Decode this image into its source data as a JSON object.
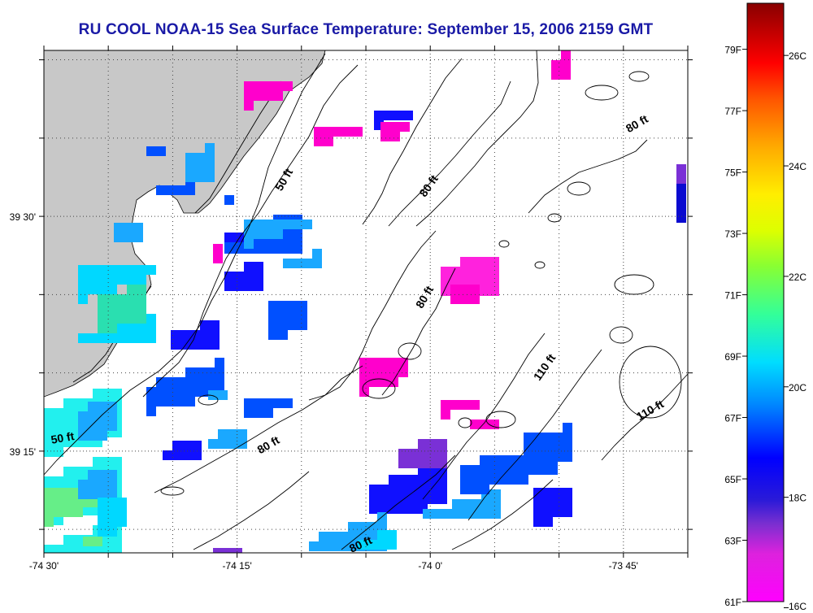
{
  "title": "RU COOL  NOAA-15  Sea Surface Temperature:  September 15, 2006 2159 GMT",
  "map": {
    "lon_range": [
      -74.5,
      -73.6667
    ],
    "lat_range": [
      39.1417,
      39.6767
    ],
    "x_ticks": [
      {
        "lon": -74.5,
        "label": "-74 30'"
      },
      {
        "lon": -74.25,
        "label": "-74 15'"
      },
      {
        "lon": -74.0,
        "label": "-74 0'"
      },
      {
        "lon": -73.75,
        "label": "-73 45'"
      }
    ],
    "y_ticks": [
      {
        "lat": 39.5,
        "label": "39 30'"
      },
      {
        "lat": 39.25,
        "label": "39 15'"
      }
    ],
    "colors": {
      "land": "#c8c8c8",
      "title": "#1a1aa6",
      "grid": "#444444"
    },
    "depth_labels": [
      {
        "text": "50 ft",
        "lon": -74.185,
        "lat": 39.537,
        "angle": -60
      },
      {
        "text": "80 ft",
        "lon": -73.998,
        "lat": 39.53,
        "angle": -55
      },
      {
        "text": "80 ft",
        "lon": -73.73,
        "lat": 39.595,
        "angle": -30
      },
      {
        "text": "80 ft",
        "lon": -74.003,
        "lat": 39.412,
        "angle": -60
      },
      {
        "text": "110 ft",
        "lon": -73.848,
        "lat": 39.337,
        "angle": -55
      },
      {
        "text": "110 ft",
        "lon": -73.713,
        "lat": 39.29,
        "angle": -30
      },
      {
        "text": "80 ft",
        "lon": -74.207,
        "lat": 39.253,
        "angle": -30
      },
      {
        "text": "50 ft",
        "lon": -74.475,
        "lat": 39.26,
        "angle": -10
      },
      {
        "text": "80 ft",
        "lon": -74.088,
        "lat": 39.147,
        "angle": -25
      }
    ]
  },
  "colorbar": {
    "f_labels": [
      "79F",
      "77F",
      "75F",
      "73F",
      "71F",
      "69F",
      "67F",
      "65F",
      "63F",
      "61F"
    ],
    "c_labels": [
      "26C",
      "24C",
      "22C",
      "20C",
      "18C",
      "16C"
    ],
    "f_min": 61,
    "f_max": 80.5
  }
}
